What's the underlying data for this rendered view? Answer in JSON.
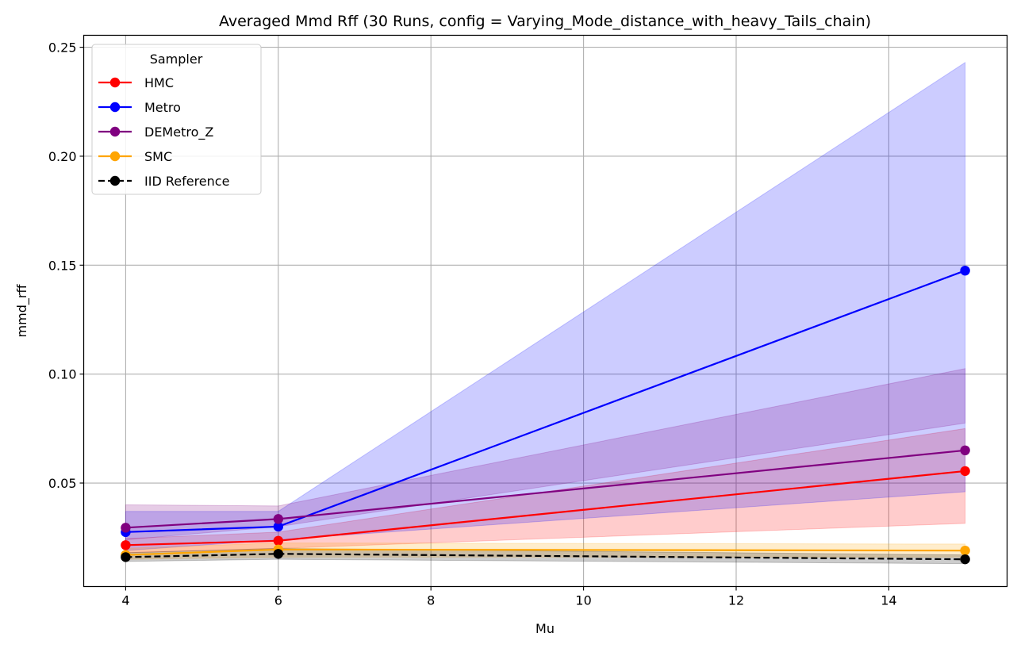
{
  "chart_data": {
    "type": "line",
    "title": "Averaged Mmd Rff (30 Runs, config = Varying_Mode_distance_with_heavy_Tails_chain)",
    "xlabel": "Mu",
    "ylabel": "mmd_rff",
    "xlim": [
      3.45,
      15.55
    ],
    "ylim": [
      0.0025,
      0.2555
    ],
    "xticks": [
      4,
      6,
      8,
      10,
      12,
      14
    ],
    "xtick_labels": [
      "4",
      "6",
      "8",
      "10",
      "12",
      "14"
    ],
    "yticks": [
      0.05,
      0.1,
      0.15,
      0.2,
      0.25
    ],
    "ytick_labels": [
      "0.05",
      "0.10",
      "0.15",
      "0.20",
      "0.25"
    ],
    "grid": true,
    "legend": {
      "title": "Sampler",
      "position": "top-left"
    },
    "x": [
      4,
      6,
      15
    ],
    "series": [
      {
        "name": "HMC",
        "color": "#ff0000",
        "dashed": false,
        "values": [
          0.0215,
          0.0235,
          0.0555
        ],
        "lower": [
          0.018,
          0.02,
          0.0315
        ],
        "upper": [
          0.0245,
          0.0275,
          0.075
        ]
      },
      {
        "name": "Metro",
        "color": "#0000ff",
        "dashed": false,
        "values": [
          0.0275,
          0.03,
          0.1475
        ],
        "lower": [
          0.019,
          0.024,
          0.046
        ],
        "upper": [
          0.037,
          0.037,
          0.243
        ]
      },
      {
        "name": "DEMetro_Z",
        "color": "#800080",
        "dashed": false,
        "values": [
          0.0295,
          0.0335,
          0.065
        ],
        "lower": [
          0.024,
          0.03,
          0.0775
        ],
        "upper": [
          0.04,
          0.0395,
          0.1025
        ]
      },
      {
        "name": "SMC",
        "color": "#ffa500",
        "dashed": false,
        "values": [
          0.017,
          0.0195,
          0.019
        ],
        "lower": [
          0.015,
          0.016,
          0.016
        ],
        "upper": [
          0.02,
          0.0225,
          0.022
        ]
      },
      {
        "name": "IID Reference",
        "color": "#000000",
        "dashed": true,
        "values": [
          0.016,
          0.0175,
          0.015
        ],
        "lower": [
          0.014,
          0.015,
          0.013
        ],
        "upper": [
          0.018,
          0.02,
          0.017
        ]
      }
    ]
  }
}
